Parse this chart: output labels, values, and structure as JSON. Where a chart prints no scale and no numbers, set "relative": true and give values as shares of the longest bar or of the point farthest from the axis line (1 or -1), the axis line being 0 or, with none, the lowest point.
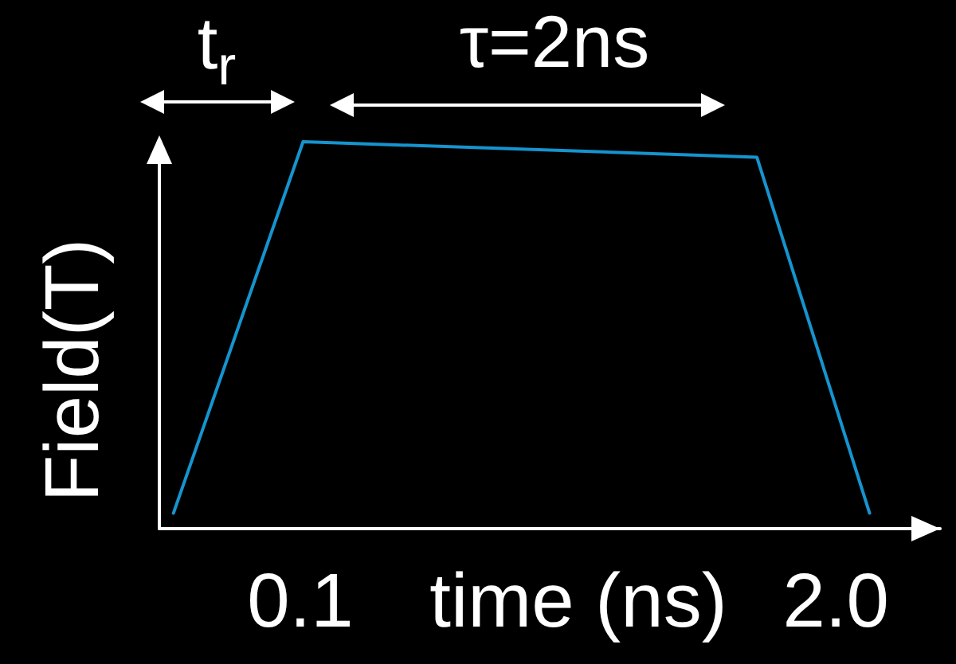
{
  "chart_data": {
    "type": "line",
    "xlabel": "time (ns)",
    "ylabel": "Field(T)",
    "annotations": [
      "t$_{r}$",
      "τ=2ns"
    ],
    "x": [
      -0.35,
      0.11,
      1.72,
      2.12
    ],
    "values": [
      0.04,
      1,
      0.96,
      0.04
    ],
    "color": "#1594cf",
    "relative": true,
    "xlim": [
      -0.4,
      2.37
    ],
    "xticks": [
      0.1,
      {
        "value": 2,
        "label": "2.0"
      }
    ],
    "tick_labels": "x",
    "grid": false,
    "marker": "none",
    "line_style": "solid"
  }
}
